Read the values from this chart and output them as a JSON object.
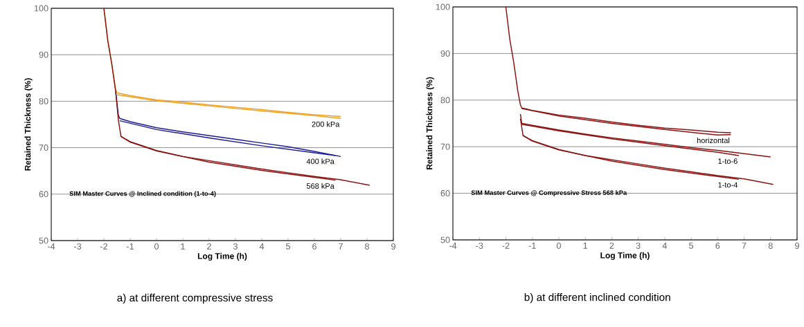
{
  "chart_data": [
    {
      "type": "line",
      "xlabel": "Log Time (h)",
      "ylabel": "Retained Thickness (%)",
      "xlim": [
        -4,
        9
      ],
      "ylim": [
        50,
        100
      ],
      "xticks": [
        -4,
        -3,
        -2,
        -1,
        0,
        1,
        2,
        3,
        4,
        5,
        6,
        7,
        8,
        9
      ],
      "yticks": [
        50,
        60,
        70,
        80,
        90,
        100
      ],
      "grid": "y",
      "annotations": [
        "SIM Master Curves @ Inclined condition (1-to-4)",
        "a) at different compressive stress"
      ],
      "series": [
        {
          "color": "#f0a020",
          "x": [
            -2,
            -1.85,
            -1.7,
            -1.55,
            -1.5,
            -1,
            0,
            1,
            2,
            3,
            4,
            5,
            6,
            7
          ],
          "values": [
            100,
            93,
            88,
            82.5,
            81.8,
            81.2,
            80.3,
            79.8,
            79.2,
            78.7,
            78.2,
            77.6,
            77.1,
            76.7
          ]
        },
        {
          "name": "200 kPa",
          "color": "#f0a020",
          "x": [
            -1.5,
            0,
            2,
            4,
            6,
            7
          ],
          "values": [
            81.4,
            80.1,
            79.0,
            77.9,
            76.9,
            76.3
          ]
        },
        {
          "color": "#1a1a9a",
          "x": [
            -1.55,
            -1.45,
            -1.4,
            -1,
            0,
            1,
            2,
            3,
            4,
            5,
            6,
            7
          ],
          "values": [
            82,
            77,
            76.3,
            75.6,
            74.3,
            73.4,
            72.6,
            71.8,
            71.0,
            70.2,
            69.2,
            68.1
          ]
        },
        {
          "name": "400 kPa",
          "color": "#1a1a9a",
          "x": [
            -1.4,
            0,
            2,
            4,
            6,
            6.8
          ],
          "values": [
            75.8,
            73.9,
            72.1,
            70.4,
            68.9,
            68.3
          ]
        },
        {
          "color": "#8b1010",
          "x": [
            -2,
            -1.85,
            -1.7,
            -1.55,
            -1.45,
            -1.35,
            -1,
            0,
            1,
            2,
            3,
            4,
            5,
            6,
            7,
            8.1
          ],
          "values": [
            100,
            93,
            88,
            82,
            76,
            72.4,
            71.3,
            69.4,
            68.1,
            67.2,
            66.3,
            65.4,
            64.6,
            63.8,
            63.1,
            61.9
          ]
        },
        {
          "name": "568 kPa",
          "color": "#8b1010",
          "x": [
            -1.35,
            -1,
            0,
            2,
            4,
            6,
            6.8
          ],
          "values": [
            72.4,
            71.2,
            69.3,
            66.9,
            65.1,
            63.6,
            63.0
          ]
        }
      ]
    },
    {
      "type": "line",
      "xlabel": "Log Time (h)",
      "ylabel": "Retained Thickness (%)",
      "xlim": [
        -4,
        9
      ],
      "ylim": [
        50,
        100
      ],
      "xticks": [
        -4,
        -3,
        -2,
        -1,
        0,
        1,
        2,
        3,
        4,
        5,
        6,
        7,
        8,
        9
      ],
      "yticks": [
        50,
        60,
        70,
        80,
        90,
        100
      ],
      "grid": "y",
      "annotations": [
        "SIM Master Curves @ Compressive Stress 568 kPa",
        "b) at different inclined condition"
      ],
      "series": [
        {
          "color": "#8b1010",
          "x": [
            -2,
            -1.85,
            -1.7,
            -1.55,
            -1.45,
            -1.4,
            -1,
            0,
            1,
            2,
            3,
            4,
            5,
            6,
            6.5
          ],
          "values": [
            100,
            93,
            88,
            82,
            79,
            78.3,
            77.8,
            76.8,
            76.1,
            75.3,
            74.6,
            74.0,
            73.6,
            73.1,
            73.0
          ]
        },
        {
          "name": "horizontal",
          "color": "#8b1010",
          "x": [
            -1.4,
            0,
            2,
            4,
            6,
            6.5
          ],
          "values": [
            78.2,
            76.6,
            75.0,
            73.7,
            72.5,
            72.6
          ]
        },
        {
          "color": "#8b1010",
          "x": [
            -1.45,
            -1.4,
            -1,
            0,
            1,
            2,
            3,
            4,
            5,
            6,
            7,
            8
          ],
          "values": [
            77,
            75,
            74.6,
            73.6,
            72.7,
            71.9,
            71.2,
            70.5,
            69.8,
            69.2,
            68.5,
            67.8
          ]
        },
        {
          "name": "1-to-6",
          "color": "#8b1010",
          "x": [
            -1.4,
            0,
            2,
            4,
            6,
            6.8
          ],
          "values": [
            74.8,
            73.4,
            71.7,
            70.2,
            68.8,
            68.1
          ]
        },
        {
          "color": "#8b1010",
          "x": [
            -1.45,
            -1.35,
            -1,
            0,
            1,
            2,
            3,
            4,
            5,
            6,
            7,
            8.1
          ],
          "values": [
            76,
            72.4,
            71.3,
            69.4,
            68.1,
            67.2,
            66.3,
            65.4,
            64.6,
            63.8,
            63.1,
            61.9
          ]
        },
        {
          "name": "1-to-4",
          "color": "#8b1010",
          "x": [
            -1.35,
            -1,
            0,
            2,
            4,
            6,
            6.8
          ],
          "values": [
            72.4,
            71.2,
            69.3,
            66.9,
            65.1,
            63.6,
            63.0
          ]
        }
      ]
    }
  ]
}
